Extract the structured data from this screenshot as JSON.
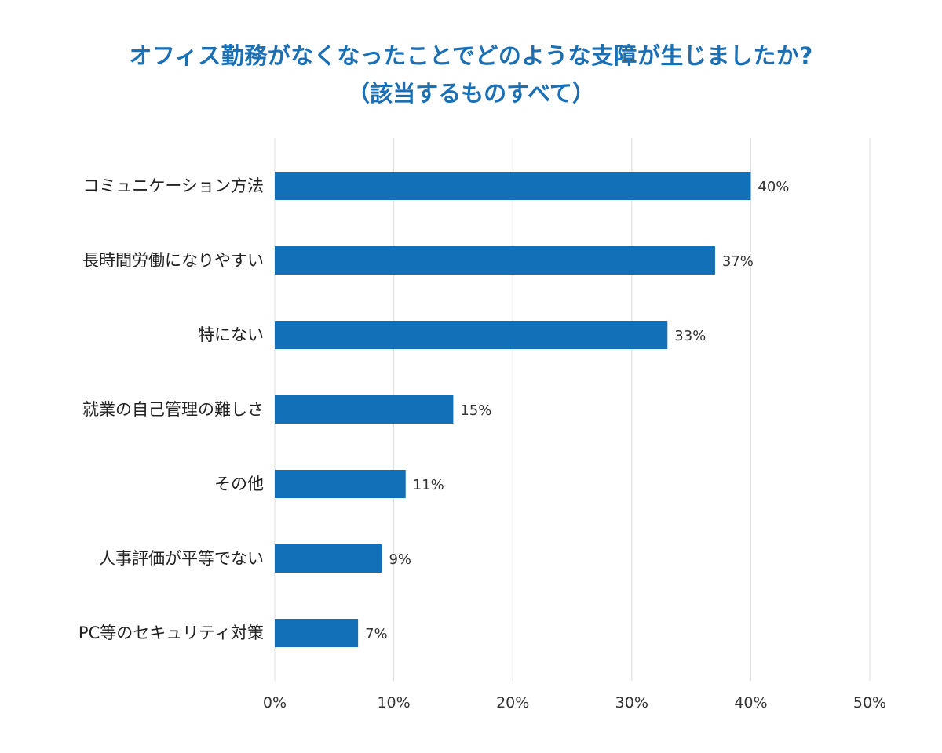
{
  "chart_data": {
    "type": "bar",
    "orientation": "horizontal",
    "title": "オフィス勤務がなくなったことでどのような支障が生じましたか?",
    "subtitle": "（該当するものすべて）",
    "categories": [
      "コミュニケーション方法",
      "長時間労働になりやすい",
      "特にない",
      "就業の自己管理の難しさ",
      "その他",
      "人事評価が平等でない",
      "PC等のセキュリティ対策"
    ],
    "values": [
      40,
      37,
      33,
      15,
      11,
      9,
      7
    ],
    "value_labels": [
      "40%",
      "37%",
      "33%",
      "15%",
      "11%",
      "9%",
      "7%"
    ],
    "xlim": [
      0,
      50
    ],
    "xticks": [
      0,
      10,
      20,
      30,
      40,
      50
    ],
    "xtick_labels": [
      "0%",
      "10%",
      "20%",
      "30%",
      "40%",
      "50%"
    ],
    "grid": true,
    "bar_color": "#1170b8",
    "title_color": "#1a6fb5",
    "grid_color": "#dcdcdc"
  }
}
